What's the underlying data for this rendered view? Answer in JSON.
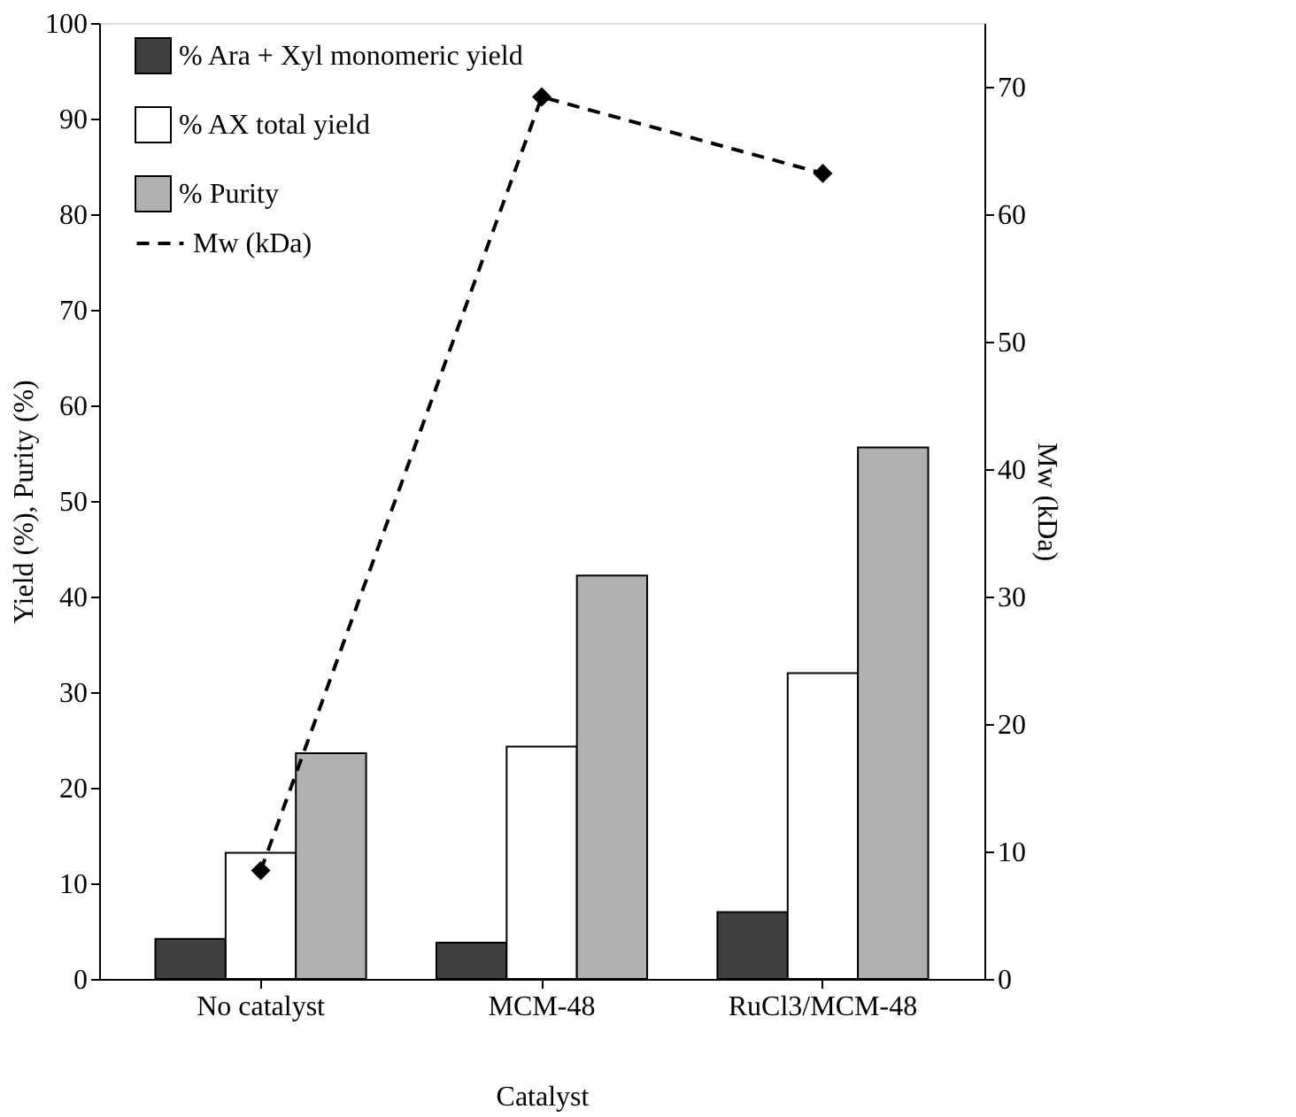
{
  "chart_data": {
    "type": "bar",
    "xlabel": "Catalyst",
    "ylabel": "Yield (%), Purity (%)",
    "y2label": "Mw (kDa)",
    "categories": [
      "No catalyst",
      "MCM-48",
      "RuCl3/MCM-48"
    ],
    "series": [
      {
        "name": "% Ara + Xyl monomeric yield",
        "color": "#404040",
        "values": [
          4.2,
          3.8,
          7.0
        ]
      },
      {
        "name": "% AX total yield",
        "color": "#ffffff",
        "values": [
          13.2,
          24.3,
          32.0
        ]
      },
      {
        "name": "% Purity",
        "color": "#b0b0b0",
        "values": [
          23.6,
          42.2,
          55.6
        ]
      },
      {
        "name": "Mw (kDa)",
        "type": "line",
        "axis": "y2",
        "color": "#000000",
        "marker": "diamond",
        "line_style": "dashed",
        "values": [
          8.5,
          69.2,
          63.2
        ]
      }
    ],
    "ylim": [
      0,
      100
    ],
    "yticks": [
      0,
      10,
      20,
      30,
      40,
      50,
      60,
      70,
      80,
      90,
      100
    ],
    "y2lim": [
      0,
      75
    ],
    "y2ticks": [
      0,
      10,
      20,
      30,
      40,
      50,
      60,
      70
    ],
    "grid": false,
    "legend": "top left"
  }
}
